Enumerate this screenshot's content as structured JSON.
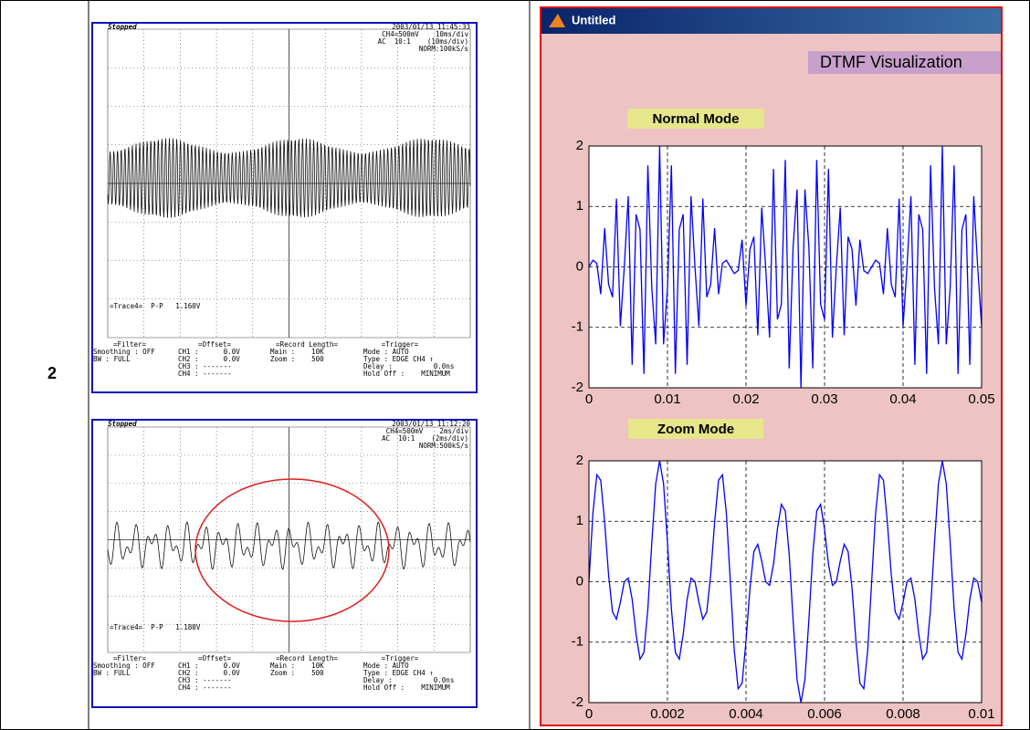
{
  "table": {
    "row_label": "2"
  },
  "scopes": [
    {
      "status": "Stopped",
      "datetime": "2003/01/13 11:45:33",
      "settings": [
        "CH4=500mV    10ms/div",
        "AC  10:1    (10ms/div)",
        "NORM:100kS/s"
      ],
      "measurement": "=Trace4=  P-P   1.160V",
      "footer": [
        [
          "=Filter=",
          "Smoothing : OFF",
          "BW : FULL"
        ],
        [
          "=Offset=",
          "CH1 :      0.0V",
          "CH2 :      0.0V",
          "CH3 : -------",
          "CH4 : -------"
        ],
        [
          "=Record Length=",
          "Main :    10K",
          "Zoom :    500"
        ],
        [
          "=Trigger=",
          "Mode : AUTO",
          "Type : EDGE CH4 ↑",
          "Delay :          0.0ns",
          "Hold Off :    MINIMUM"
        ]
      ]
    },
    {
      "status": "Stopped",
      "datetime": "2003/01/13 11:12:20",
      "settings": [
        "CH4=500mV    2ms/div",
        "AC  10:1    (2ms/div)",
        "NORM:500kS/s"
      ],
      "measurement": "=Trace4=  P-P   1.180V",
      "footer": [
        [
          "=Filter=",
          "Smoothing : OFF",
          "BW : FULL"
        ],
        [
          "=Offset=",
          "CH1 :      0.0V",
          "CH2 :      0.0V",
          "CH3 : -------",
          "CH4 : -------"
        ],
        [
          "=Record Length=",
          "Main :    10K",
          "Zoom :    500"
        ],
        [
          "=Trigger=",
          "Mode : AUTO",
          "Type : EDGE CH4 ↑",
          "Delay :          0.0ns",
          "Hold Off :    MINIMUM"
        ]
      ]
    }
  ],
  "figure": {
    "window_title": "Untitled",
    "title": "DTMF Visualization"
  },
  "chart_data": [
    {
      "type": "line",
      "title": "Normal Mode",
      "x": [
        0,
        0.0005,
        0.001,
        0.0015,
        0.002,
        0.0025,
        0.003,
        0.0035,
        0.004,
        0.0045,
        0.005,
        0.0055,
        0.006,
        0.0065,
        0.007,
        0.0075,
        0.008,
        0.0085,
        0.009,
        0.0095,
        0.01,
        0.0105,
        0.011,
        0.0115,
        0.012,
        0.0125,
        0.013,
        0.0135,
        0.014,
        0.0145,
        0.015,
        0.0155,
        0.016,
        0.0165,
        0.017,
        0.0175,
        0.018,
        0.0185,
        0.019,
        0.0195,
        0.02,
        0.0205,
        0.021,
        0.0215,
        0.022,
        0.0225,
        0.023,
        0.0235,
        0.024,
        0.0245,
        0.025,
        0.0255,
        0.026,
        0.0265,
        0.027,
        0.0275,
        0.028,
        0.0285,
        0.029,
        0.0295,
        0.03,
        0.0305,
        0.031,
        0.0315,
        0.032,
        0.0325,
        0.033,
        0.0335,
        0.034,
        0.0345,
        0.035,
        0.0355,
        0.036,
        0.0365,
        0.037,
        0.0375,
        0.038,
        0.0385,
        0.039,
        0.0395,
        0.04,
        0.0405,
        0.041,
        0.0415,
        0.042,
        0.0425,
        0.043,
        0.0435,
        0.044,
        0.0445,
        0.045,
        0.0455,
        0.046,
        0.0465,
        0.047,
        0.0475,
        0.048,
        0.0485,
        0.049,
        0.0495,
        0.05
      ],
      "series": [
        {
          "color": "#0000ff",
          "values": [
            0,
            0.11,
            0.06,
            -0.45,
            0.64,
            -0.29,
            -0.5,
            1.13,
            -0.98,
            0,
            1.17,
            -1.62,
            0.87,
            0.62,
            -1.77,
            1.68,
            -0.34,
            -1.28,
            2,
            -1.28,
            -0.34,
            1.68,
            -1.77,
            0.62,
            0.87,
            -1.62,
            1.17,
            0,
            -0.98,
            1.13,
            -0.5,
            -0.29,
            0.64,
            -0.45,
            0.06,
            0.11,
            0,
            -0.11,
            -0.06,
            0.45,
            -0.64,
            0.29,
            0.5,
            -1.13,
            0.98,
            0,
            -1.17,
            1.62,
            -0.87,
            -0.62,
            1.77,
            -1.68,
            0.34,
            1.28,
            -2,
            1.28,
            0.34,
            -1.68,
            1.77,
            -0.62,
            -0.87,
            1.62,
            -1.17,
            0,
            0.98,
            -1.13,
            0.5,
            0.29,
            -0.64,
            0.45,
            -0.06,
            -0.11,
            0,
            0.11,
            0.06,
            -0.45,
            0.64,
            -0.29,
            -0.5,
            1.13,
            -0.98,
            0,
            1.17,
            -1.62,
            0.87,
            0.62,
            -1.77,
            1.68,
            -0.34,
            -1.28,
            2,
            -1.28,
            -0.34,
            1.68,
            -1.77,
            0.62,
            0.87,
            -1.62,
            1.17,
            0,
            -0.98
          ]
        }
      ],
      "xlim": [
        0,
        0.05
      ],
      "ylim": [
        -2,
        2
      ],
      "xticks": [
        0,
        0.01,
        0.02,
        0.03,
        0.04,
        0.05
      ],
      "yticks": [
        -2,
        -1,
        0,
        1,
        2
      ],
      "grid": true
    },
    {
      "type": "line",
      "title": "Zoom Mode",
      "x": [
        0,
        0.0001,
        0.0002,
        0.0003,
        0.0004,
        0.0005,
        0.0006,
        0.0007,
        0.0008,
        0.0009,
        0.001,
        0.0011,
        0.0012,
        0.0013,
        0.0014,
        0.0015,
        0.0016,
        0.0017,
        0.0018,
        0.0019,
        0.002,
        0.0021,
        0.0022,
        0.0023,
        0.0024,
        0.0025,
        0.0026,
        0.0027,
        0.0028,
        0.0029,
        0.003,
        0.0031,
        0.0032,
        0.0033,
        0.0034,
        0.0035,
        0.0036,
        0.0037,
        0.0038,
        0.0039,
        0.004,
        0.0041,
        0.0042,
        0.0043,
        0.0044,
        0.0045,
        0.0046,
        0.0047,
        0.0048,
        0.0049,
        0.005,
        0.0051,
        0.0052,
        0.0053,
        0.0054,
        0.0055,
        0.0056,
        0.0057,
        0.0058,
        0.0059,
        0.006,
        0.0061,
        0.0062,
        0.0063,
        0.0064,
        0.0065,
        0.0066,
        0.0067,
        0.0068,
        0.0069,
        0.007,
        0.0071,
        0.0072,
        0.0073,
        0.0074,
        0.0075,
        0.0076,
        0.0077,
        0.0078,
        0.0079,
        0.008,
        0.0081,
        0.0082,
        0.0083,
        0.0084,
        0.0085,
        0.0086,
        0.0087,
        0.0088,
        0.0089,
        0.009,
        0.0091,
        0.0092,
        0.0093,
        0.0094,
        0.0095,
        0.0096,
        0.0097,
        0.0098,
        0.0099,
        0.01
      ],
      "series": [
        {
          "color": "#0000ff",
          "values": [
            0,
            1.13,
            1.77,
            1.68,
            0.98,
            0.11,
            -0.5,
            -0.62,
            -0.34,
            0,
            0.06,
            -0.29,
            -0.87,
            -1.28,
            -1.17,
            -0.45,
            0.64,
            1.62,
            2,
            1.62,
            0.64,
            -0.45,
            -1.17,
            -1.28,
            -0.87,
            -0.29,
            0.06,
            0,
            -0.34,
            -0.62,
            -0.5,
            0.11,
            0.98,
            1.68,
            1.77,
            1.13,
            0,
            -1.13,
            -1.77,
            -1.68,
            -0.98,
            -0.11,
            0.5,
            0.62,
            0.34,
            0,
            -0.06,
            0.29,
            0.87,
            1.28,
            1.17,
            0.45,
            -0.64,
            -1.62,
            -2,
            -1.62,
            -0.64,
            0.45,
            1.17,
            1.28,
            0.87,
            0.29,
            -0.06,
            0,
            0.34,
            0.62,
            0.5,
            -0.11,
            -0.98,
            -1.68,
            -1.77,
            -1.13,
            0,
            1.13,
            1.77,
            1.68,
            0.98,
            0.11,
            -0.5,
            -0.62,
            -0.34,
            0,
            0.06,
            -0.29,
            -0.87,
            -1.28,
            -1.17,
            -0.45,
            0.64,
            1.62,
            2,
            1.62,
            0.64,
            -0.45,
            -1.17,
            -1.28,
            -0.87,
            -0.29,
            0.06,
            0,
            -0.34
          ]
        }
      ],
      "xlim": [
        0,
        0.01
      ],
      "ylim": [
        -2,
        2
      ],
      "xticks": [
        0,
        0.002,
        0.004,
        0.006,
        0.008,
        0.01
      ],
      "yticks": [
        -2,
        -1,
        0,
        1,
        2
      ],
      "grid": true
    }
  ]
}
